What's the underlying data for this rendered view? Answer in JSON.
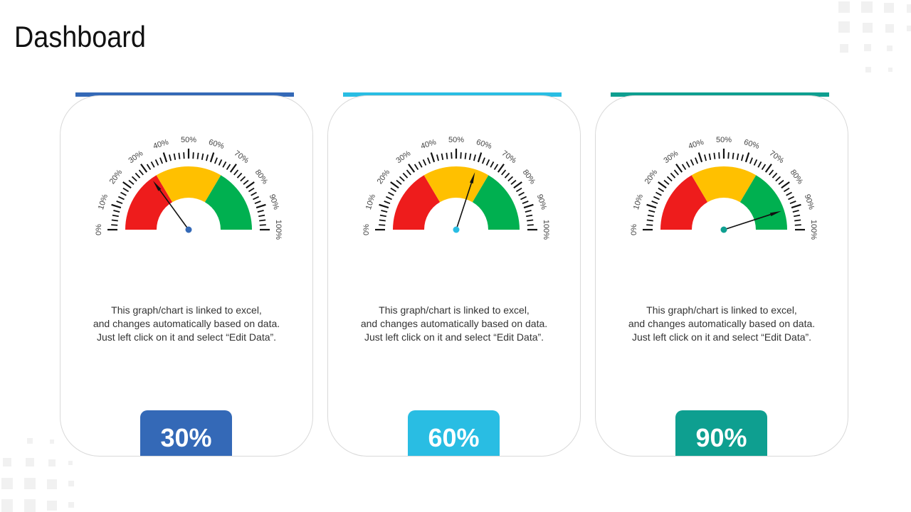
{
  "header": {
    "title": "Dashboard"
  },
  "card_text": {
    "line1": "This graph/chart is linked to excel,",
    "line2": "and changes automatically  based on data.",
    "line3": "Just left click  on it and select “Edit Data”."
  },
  "colors": {
    "red": "#ee1c1c",
    "yellow": "#ffc000",
    "green": "#00b050",
    "cards": [
      "#3469b7",
      "#29bde3",
      "#0e9f90"
    ]
  },
  "chart_data": [
    {
      "type": "gauge",
      "value": 30,
      "value_label": "30%",
      "range": [
        0,
        100
      ],
      "tick_labels": [
        "0%",
        "10%",
        "20%",
        "30%",
        "40%",
        "50%",
        "60%",
        "70%",
        "80%",
        "90%",
        "100%"
      ],
      "bands": [
        {
          "from": 0,
          "to": 33,
          "color": "red"
        },
        {
          "from": 33,
          "to": 67,
          "color": "yellow"
        },
        {
          "from": 67,
          "to": 100,
          "color": "green"
        }
      ]
    },
    {
      "type": "gauge",
      "value": 60,
      "value_label": "60%",
      "range": [
        0,
        100
      ],
      "tick_labels": [
        "0%",
        "10%",
        "20%",
        "30%",
        "40%",
        "50%",
        "60%",
        "70%",
        "80%",
        "90%",
        "100%"
      ],
      "bands": [
        {
          "from": 0,
          "to": 33,
          "color": "red"
        },
        {
          "from": 33,
          "to": 67,
          "color": "yellow"
        },
        {
          "from": 67,
          "to": 100,
          "color": "green"
        }
      ]
    },
    {
      "type": "gauge",
      "value": 90,
      "value_label": "90%",
      "range": [
        0,
        100
      ],
      "tick_labels": [
        "0%",
        "10%",
        "20%",
        "30%",
        "40%",
        "50%",
        "60%",
        "70%",
        "80%",
        "90%",
        "100%"
      ],
      "bands": [
        {
          "from": 0,
          "to": 33,
          "color": "red"
        },
        {
          "from": 33,
          "to": 67,
          "color": "yellow"
        },
        {
          "from": 67,
          "to": 100,
          "color": "green"
        }
      ]
    }
  ]
}
